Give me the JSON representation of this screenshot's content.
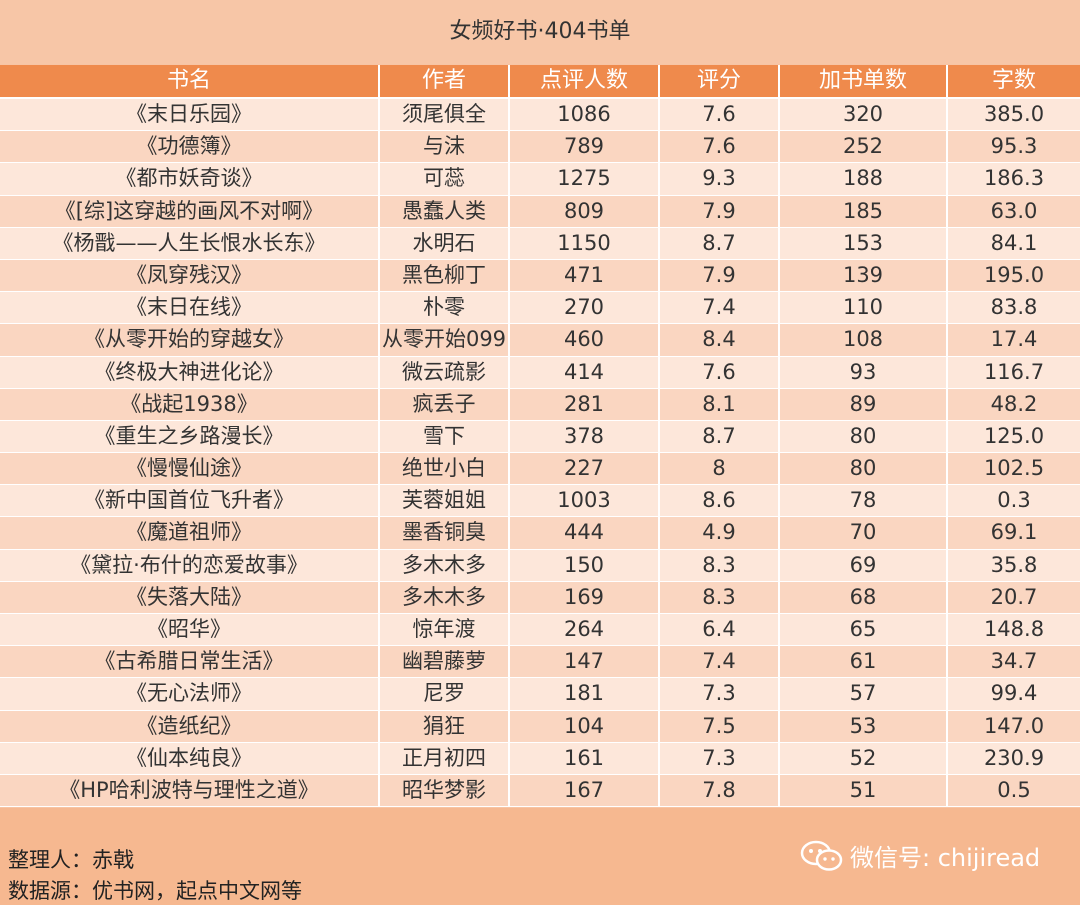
{
  "header": {
    "title": "女频好书·404书单"
  },
  "table": {
    "columns": [
      "书名",
      "作者",
      "点评人数",
      "评分",
      "加书单数",
      "字数"
    ],
    "rows": [
      [
        "《末日乐园》",
        "须尾俱全",
        "1086",
        "7.6",
        "320",
        "385.0"
      ],
      [
        "《功德簿》",
        "与沫",
        "789",
        "7.6",
        "252",
        "95.3"
      ],
      [
        "《都市妖奇谈》",
        "可蕊",
        "1275",
        "9.3",
        "188",
        "186.3"
      ],
      [
        "《[综]这穿越的画风不对啊》",
        "愚蠢人类",
        "809",
        "7.9",
        "185",
        "63.0"
      ],
      [
        "《杨戬——人生长恨水长东》",
        "水明石",
        "1150",
        "8.7",
        "153",
        "84.1"
      ],
      [
        "《凤穿残汉》",
        "黑色柳丁",
        "471",
        "7.9",
        "139",
        "195.0"
      ],
      [
        "《末日在线》",
        "朴零",
        "270",
        "7.4",
        "110",
        "83.8"
      ],
      [
        "《从零开始的穿越女》",
        "从零开始099",
        "460",
        "8.4",
        "108",
        "17.4"
      ],
      [
        "《终极大神进化论》",
        "微云疏影",
        "414",
        "7.6",
        "93",
        "116.7"
      ],
      [
        "《战起1938》",
        "疯丢子",
        "281",
        "8.1",
        "89",
        "48.2"
      ],
      [
        "《重生之乡路漫长》",
        "雪下",
        "378",
        "8.7",
        "80",
        "125.0"
      ],
      [
        "《慢慢仙途》",
        "绝世小白",
        "227",
        "8",
        "80",
        "102.5"
      ],
      [
        "《新中国首位飞升者》",
        "芙蓉姐姐",
        "1003",
        "8.6",
        "78",
        "0.3"
      ],
      [
        "《魔道祖师》",
        "墨香铜臭",
        "444",
        "4.9",
        "70",
        "69.1"
      ],
      [
        "《黛拉·布什的恋爱故事》",
        "多木木多",
        "150",
        "8.3",
        "69",
        "35.8"
      ],
      [
        "《失落大陆》",
        "多木木多",
        "169",
        "8.3",
        "68",
        "20.7"
      ],
      [
        "《昭华》",
        "惊年渡",
        "264",
        "6.4",
        "65",
        "148.8"
      ],
      [
        "《古希腊日常生活》",
        "幽碧藤萝",
        "147",
        "7.4",
        "61",
        "34.7"
      ],
      [
        "《无心法师》",
        "尼罗",
        "181",
        "7.3",
        "57",
        "99.4"
      ],
      [
        "《造纸纪》",
        "狷狂",
        "104",
        "7.5",
        "53",
        "147.0"
      ],
      [
        "《仙本纯良》",
        "正月初四",
        "161",
        "7.3",
        "52",
        "230.9"
      ],
      [
        "《HP哈利波特与理性之道》",
        "昭华梦影",
        "167",
        "7.8",
        "51",
        "0.5"
      ]
    ]
  },
  "footer": {
    "lines": [
      "整理人：赤戟",
      "数据源：优书网，起点中文网等"
    ],
    "wechat": "微信号: chijiread"
  }
}
